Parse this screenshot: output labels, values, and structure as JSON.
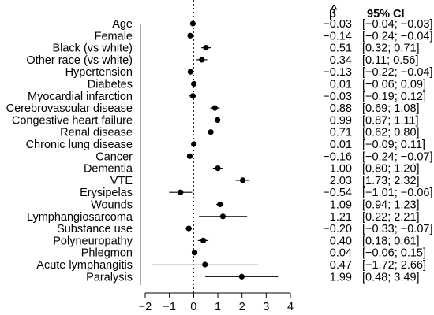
{
  "chart_data": {
    "type": "forest",
    "columns": {
      "beta": "β",
      "ci": "95% CI"
    },
    "xlim": [
      -2,
      4
    ],
    "ticks": [
      "−2",
      "−1",
      "0",
      "1",
      "2",
      "3",
      "4"
    ],
    "tick_values": [
      -2,
      -1,
      0,
      1,
      2,
      3,
      4
    ],
    "reference_line": 0,
    "rows": [
      {
        "label": "Age",
        "beta": -0.03,
        "lo": -0.04,
        "hi": -0.03,
        "beta_text": "−0.03",
        "ci_text": "[−0.04; −0.03]"
      },
      {
        "label": "Female",
        "beta": -0.14,
        "lo": -0.24,
        "hi": -0.04,
        "beta_text": "−0.14",
        "ci_text": "[−0.24; −0.04]"
      },
      {
        "label": "Black (vs white)",
        "beta": 0.51,
        "lo": 0.32,
        "hi": 0.71,
        "beta_text": "0.51",
        "ci_text": "[0.32;  0.71]"
      },
      {
        "label": "Other race (vs white)",
        "beta": 0.34,
        "lo": 0.11,
        "hi": 0.56,
        "beta_text": "0.34",
        "ci_text": "[0.11;  0.56]"
      },
      {
        "label": "Hypertension",
        "beta": -0.13,
        "lo": -0.22,
        "hi": -0.04,
        "beta_text": "−0.13",
        "ci_text": "[−0.22; −0.04]"
      },
      {
        "label": "Diabetes",
        "beta": 0.01,
        "lo": -0.06,
        "hi": 0.09,
        "beta_text": "0.01",
        "ci_text": "[−0.06;  0.09]"
      },
      {
        "label": "Myocardial infarction",
        "beta": -0.03,
        "lo": -0.19,
        "hi": 0.12,
        "beta_text": "−0.03",
        "ci_text": "[−0.19;  0.12]"
      },
      {
        "label": "Cerebrovascular disease",
        "beta": 0.88,
        "lo": 0.69,
        "hi": 1.08,
        "beta_text": "0.88",
        "ci_text": "[0.69;  1.08]"
      },
      {
        "label": "Congestive heart failure",
        "beta": 0.99,
        "lo": 0.87,
        "hi": 1.11,
        "beta_text": "0.99",
        "ci_text": "[0.87;  1.11]"
      },
      {
        "label": "Renal disease",
        "beta": 0.71,
        "lo": 0.62,
        "hi": 0.8,
        "beta_text": "0.71",
        "ci_text": "[0.62;  0.80]"
      },
      {
        "label": "Chronic lung disease",
        "beta": 0.01,
        "lo": -0.09,
        "hi": 0.11,
        "beta_text": "0.01",
        "ci_text": "[−0.09;  0.11]"
      },
      {
        "label": "Cancer",
        "beta": -0.16,
        "lo": -0.24,
        "hi": -0.07,
        "beta_text": "−0.16",
        "ci_text": "[−0.24; −0.07]"
      },
      {
        "label": "Dementia",
        "beta": 1.0,
        "lo": 0.8,
        "hi": 1.2,
        "beta_text": "1.00",
        "ci_text": "[0.80;  1.20]"
      },
      {
        "label": "VTE",
        "beta": 2.03,
        "lo": 1.73,
        "hi": 2.32,
        "beta_text": "2.03",
        "ci_text": "[1.73;  2.32]"
      },
      {
        "label": "Erysipelas",
        "beta": -0.54,
        "lo": -1.01,
        "hi": -0.06,
        "beta_text": "−0.54",
        "ci_text": "[−1.01; −0.06]"
      },
      {
        "label": "Wounds",
        "beta": 1.09,
        "lo": 0.94,
        "hi": 1.23,
        "beta_text": "1.09",
        "ci_text": "[0.94;  1.23]"
      },
      {
        "label": "Lymphangiosarcoma",
        "beta": 1.21,
        "lo": 0.22,
        "hi": 2.21,
        "beta_text": "1.21",
        "ci_text": "[0.22;  2.21]"
      },
      {
        "label": "Substance use",
        "beta": -0.2,
        "lo": -0.33,
        "hi": -0.07,
        "beta_text": "−0.20",
        "ci_text": "[−0.33; −0.07]"
      },
      {
        "label": "Polyneuropathy",
        "beta": 0.4,
        "lo": 0.18,
        "hi": 0.61,
        "beta_text": "0.40",
        "ci_text": "[0.18;  0.61]"
      },
      {
        "label": "Phlegmon",
        "beta": 0.04,
        "lo": -0.06,
        "hi": 0.15,
        "beta_text": "0.04",
        "ci_text": "[−0.06;  0.15]"
      },
      {
        "label": "Acute lymphangitis",
        "beta": 0.47,
        "lo": -1.72,
        "hi": 2.66,
        "beta_text": "0.47",
        "ci_text": "[−1.72;  2.66]",
        "ci_color": "#bdbdbd"
      },
      {
        "label": "Paralysis",
        "beta": 1.99,
        "lo": 0.48,
        "hi": 3.49,
        "beta_text": "1.99",
        "ci_text": "[0.48;  3.49]"
      }
    ]
  }
}
